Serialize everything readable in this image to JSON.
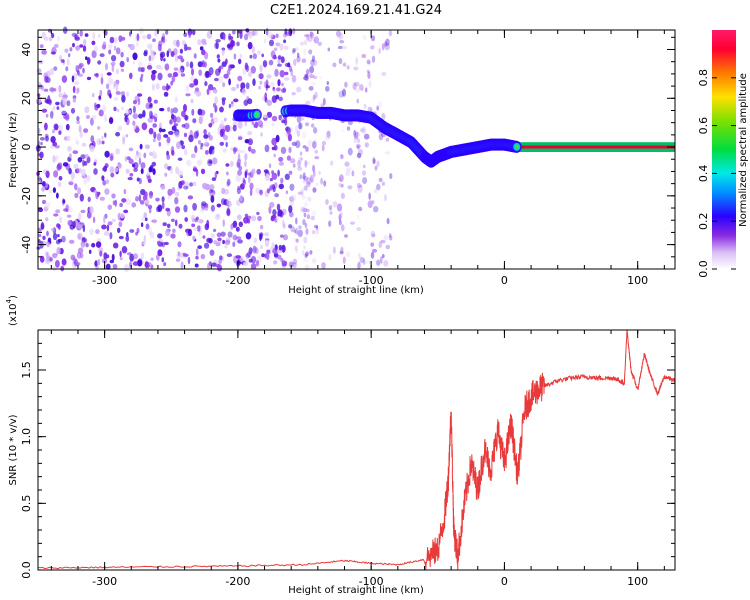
{
  "title": "C2E1.2024.169.21.41.G24",
  "colors": {
    "snr_line": "#e83a3a",
    "axis": "#000000",
    "spectral_dot": "#7a1de8",
    "spectral_line": "#e8003a"
  },
  "chart_data": [
    {
      "type": "heatmap",
      "xlabel": "Height of straight line (km)",
      "ylabel": "Frequency (Hz)",
      "xlim": [
        -350,
        128
      ],
      "ylim": [
        -50,
        48
      ],
      "xticks": [
        -300,
        -200,
        -100,
        0,
        100
      ],
      "xtick_labels": [
        "-300",
        "-200",
        "-100",
        "0",
        "100"
      ],
      "yticks": [
        -40,
        -20,
        0,
        20,
        40
      ],
      "ytick_labels": [
        "-40",
        "-20",
        "0",
        "20",
        "40"
      ],
      "noise_region": [
        -350,
        -85
      ],
      "ridge": {
        "x": [
          -200,
          -190,
          -160,
          -150,
          -140,
          -130,
          -120,
          -110,
          -100,
          -90,
          -80,
          -70,
          -60,
          -55,
          -50,
          -45,
          -40,
          -30,
          -20,
          -10,
          0,
          10,
          50,
          100,
          128
        ],
        "y": [
          13,
          13,
          15,
          15,
          14,
          14,
          13,
          13,
          12,
          8,
          5,
          2,
          -4,
          -6,
          -4,
          -3,
          -2,
          -1,
          0,
          1,
          1,
          0,
          0,
          0,
          0
        ]
      },
      "colorbar": {
        "label": "Normalized spectral amplitude",
        "range": [
          0,
          1
        ],
        "ticks": [
          0.0,
          0.2,
          0.4,
          0.6,
          0.8
        ],
        "tick_labels": [
          "0.0",
          "0.2",
          "0.4",
          "0.6",
          "0.8"
        ]
      }
    },
    {
      "type": "line",
      "xlabel": "Height of straight line (km)",
      "ylabel": "SNR (10 * v/v)",
      "y_multiplier": "(x10",
      "y_multiplier_exp": "4",
      "xlim": [
        -350,
        128
      ],
      "ylim": [
        0,
        18000
      ],
      "xticks": [
        -300,
        -200,
        -100,
        0,
        100
      ],
      "xtick_labels": [
        "-300",
        "-200",
        "-100",
        "0",
        "100"
      ],
      "yticks": [
        0,
        5000,
        10000,
        15000
      ],
      "ytick_labels": [
        "0.0",
        "0.5",
        "1.0",
        "1.5"
      ],
      "series": [
        {
          "x": [
            -350,
            -300,
            -250,
            -200,
            -150,
            -120,
            -100,
            -80,
            -60,
            -50,
            -45,
            -42,
            -40,
            -38,
            -35,
            -30,
            -25,
            -20,
            -15,
            -10,
            -5,
            0,
            5,
            10,
            15,
            20,
            25,
            30,
            40,
            50,
            60,
            70,
            80,
            85,
            90,
            92,
            95,
            100,
            105,
            110,
            115,
            120,
            128
          ],
          "values": [
            150,
            200,
            250,
            300,
            400,
            700,
            500,
            400,
            800,
            1500,
            4000,
            7000,
            12000,
            3000,
            1000,
            5000,
            8000,
            6000,
            9000,
            7500,
            10500,
            8000,
            11000,
            7000,
            12000,
            13000,
            13500,
            13800,
            14200,
            14400,
            14500,
            14400,
            14400,
            14300,
            14000,
            18000,
            15000,
            13500,
            16200,
            14500,
            13200,
            14500,
            14200
          ]
        }
      ]
    }
  ]
}
